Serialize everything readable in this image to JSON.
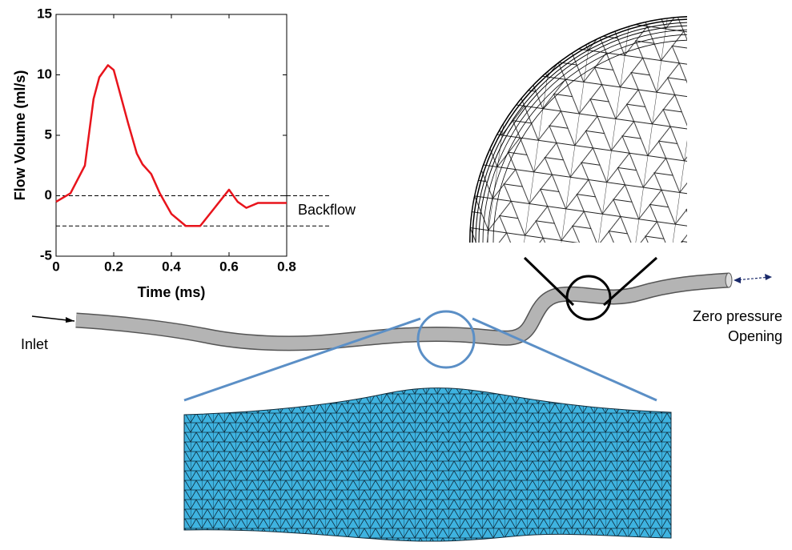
{
  "chart_data": {
    "type": "line",
    "xlabel": "Time (ms)",
    "ylabel": "Flow Volume (ml/s)",
    "x": [
      0,
      0.05,
      0.1,
      0.13,
      0.15,
      0.18,
      0.2,
      0.25,
      0.28,
      0.3,
      0.33,
      0.36,
      0.4,
      0.45,
      0.5,
      0.55,
      0.6,
      0.63,
      0.66,
      0.7,
      0.8
    ],
    "values": [
      -0.5,
      0.2,
      2.5,
      8,
      9.8,
      10.8,
      10.4,
      6,
      3.5,
      2.6,
      1.8,
      0.2,
      -1.5,
      -2.5,
      -2.5,
      -1,
      0.5,
      -0.5,
      -1,
      -0.6,
      -0.6
    ],
    "color": "#e8141c",
    "xlim": [
      0,
      0.8
    ],
    "xticks": [
      0,
      0.2,
      0.4,
      0.6,
      0.8
    ],
    "ylim": [
      -5,
      15
    ],
    "yticks": [
      -5,
      0,
      5,
      10,
      15
    ],
    "reference_lines": [
      0,
      -2.5
    ],
    "annotation": "Backflow"
  },
  "diagram": {
    "inlet_label": "Inlet",
    "outlet_label": [
      "Zero pressure",
      "Opening"
    ]
  }
}
